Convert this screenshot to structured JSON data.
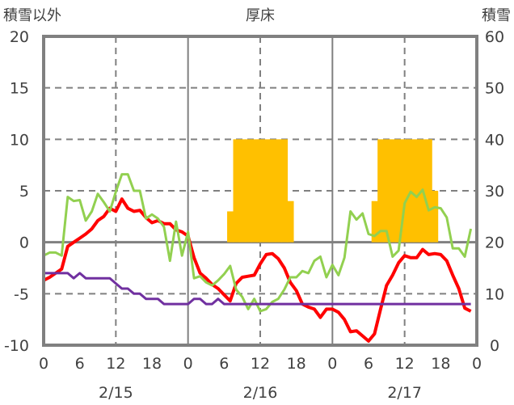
{
  "chart_data": {
    "type": "line",
    "station": "厚床",
    "left_axis_title": "積雪以外",
    "right_axis_title": "積雪",
    "ylim_left": [
      -10,
      20
    ],
    "yticks_left": [
      20,
      15,
      10,
      5,
      0,
      -5,
      -10
    ],
    "ylim_right": [
      0,
      60
    ],
    "yticks_right": [
      60,
      50,
      40,
      30,
      20,
      10,
      0
    ],
    "xlim_hours": [
      0,
      72
    ],
    "xtick_labels": [
      "0",
      "6",
      "12",
      "18",
      "0",
      "6",
      "12",
      "18",
      "0",
      "6",
      "12",
      "18",
      "0"
    ],
    "date_labels": [
      "2/15",
      "2/16",
      "2/17"
    ],
    "grid": true,
    "colors": {
      "red": "#ff0000",
      "green": "#92d050",
      "purple": "#7030a0",
      "snow": "#ffc000"
    },
    "series": [
      {
        "name": "red",
        "axis": "left",
        "values": [
          -3.7,
          -3.4,
          -3,
          -2.6,
          -0.4,
          0,
          0.4,
          0.8,
          1.3,
          2.1,
          2.5,
          3.3,
          3,
          4.2,
          3.3,
          3,
          3.1,
          2.4,
          1.9,
          2.1,
          1.8,
          1.8,
          1.2,
          1,
          0.6,
          -1.5,
          -3,
          -3.5,
          -4.1,
          -4.5,
          -5.1,
          -5.7,
          -4,
          -3.4,
          -3.3,
          -3.2,
          -2.1,
          -1.2,
          -1.1,
          -1.6,
          -2.5,
          -3.9,
          -4.7,
          -6,
          -6.3,
          -6.5,
          -7.3,
          -6.5,
          -6.5,
          -6.8,
          -7.5,
          -8.7,
          -8.6,
          -9.1,
          -9.6,
          -8.9,
          -6.5,
          -4.2,
          -3.2,
          -2,
          -1.3,
          -1.5,
          -1.5,
          -0.7,
          -1.2,
          -1.1,
          -1.2,
          -1.8,
          -3.2,
          -4.5,
          -6.4,
          -6.7
        ]
      },
      {
        "name": "green",
        "axis": "left",
        "values": [
          -1.3,
          -1,
          -1,
          -1.3,
          4.4,
          4,
          4.1,
          2.1,
          3,
          4.7,
          3.9,
          3,
          4.9,
          6.6,
          6.6,
          5,
          5,
          2.3,
          2.7,
          2.3,
          1.5,
          -1.8,
          2,
          -1.3,
          1,
          -3.5,
          -3.3,
          -3.9,
          -4.2,
          -3.7,
          -3.1,
          -2.3,
          -4.6,
          -5.3,
          -6.5,
          -5.5,
          -6.7,
          -6.5,
          -5.8,
          -5.5,
          -4.6,
          -3.4,
          -3.4,
          -2.8,
          -3,
          -1.8,
          -1.4,
          -3.4,
          -2.2,
          -3.2,
          -1.5,
          3,
          2.2,
          2.8,
          0.8,
          0.6,
          1.1,
          1.1,
          -1.4,
          -0.8,
          3.8,
          4.9,
          4.4,
          5.1,
          3.1,
          3.4,
          3.3,
          2.4,
          -0.6,
          -0.6,
          -1.4,
          1.3
        ]
      },
      {
        "name": "purple",
        "axis": "left",
        "values": [
          -3,
          -3,
          -3,
          -3,
          -3,
          -3.5,
          -3,
          -3.5,
          -3.5,
          -3.5,
          -3.5,
          -3.5,
          -4,
          -4.5,
          -4.5,
          -5,
          -5,
          -5.5,
          -5.5,
          -5.5,
          -6,
          -6,
          -6,
          -6,
          -6,
          -5.5,
          -5.5,
          -6,
          -6,
          -5.5,
          -6,
          -6,
          -6,
          -6,
          -6,
          -6,
          -6,
          -6,
          -6,
          -6,
          -6,
          -6,
          -6,
          -6,
          -6,
          -6,
          -6,
          -6,
          -6,
          -6,
          -6,
          -6,
          -6,
          -6,
          -6,
          -6,
          -6,
          -6,
          -6,
          -6,
          -6,
          -6,
          -6,
          -6,
          -6,
          -6,
          -6,
          -6,
          -6,
          -6,
          -6,
          -6
        ]
      },
      {
        "name": "snow",
        "axis": "right",
        "type": "bar",
        "hours": [
          31,
          32,
          33,
          34,
          35,
          36,
          37,
          38,
          39,
          40,
          41,
          55,
          56,
          57,
          58,
          59,
          60,
          61,
          62,
          63,
          64,
          65
        ],
        "values": [
          26,
          40,
          40,
          40,
          40,
          40,
          40,
          40,
          40,
          40,
          28,
          28,
          40,
          40,
          40,
          40,
          40,
          40,
          40,
          40,
          40,
          30
        ]
      }
    ]
  }
}
